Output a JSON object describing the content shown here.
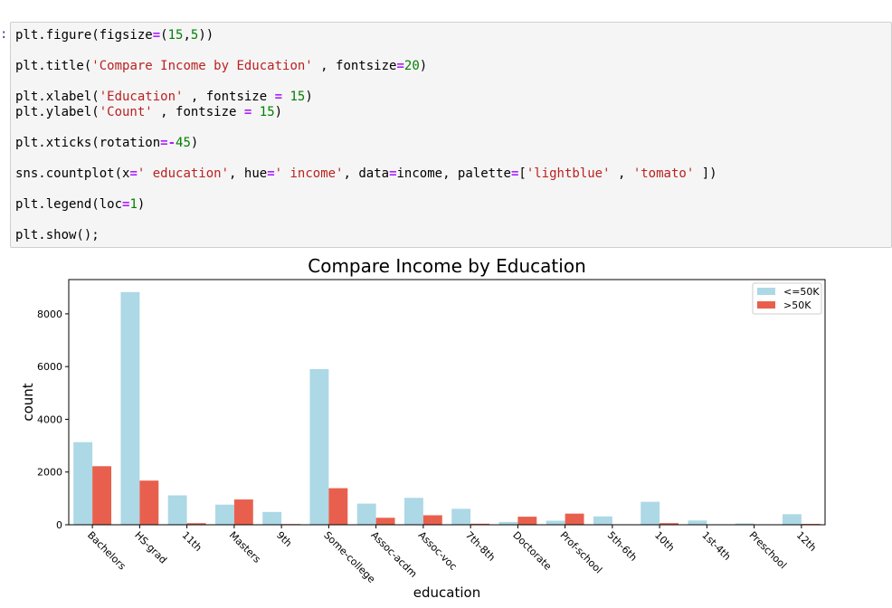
{
  "notebook": {
    "input_prompt": ":",
    "code_lines": [
      [
        [
          "t",
          "plt.figure(figsize"
        ],
        [
          "o",
          "="
        ],
        [
          "t",
          "("
        ],
        [
          "n",
          "15"
        ],
        [
          "t",
          ","
        ],
        [
          "n",
          "5"
        ],
        [
          "t",
          "))"
        ]
      ],
      [],
      [
        [
          "t",
          "plt.title("
        ],
        [
          "s",
          "'Compare Income by Education'"
        ],
        [
          "t",
          " , fontsize"
        ],
        [
          "o",
          "="
        ],
        [
          "n",
          "20"
        ],
        [
          "t",
          ")"
        ]
      ],
      [],
      [
        [
          "t",
          "plt.xlabel("
        ],
        [
          "s",
          "'Education'"
        ],
        [
          "t",
          " , fontsize "
        ],
        [
          "o",
          "="
        ],
        [
          "t",
          " "
        ],
        [
          "n",
          "15"
        ],
        [
          "t",
          ")"
        ]
      ],
      [
        [
          "t",
          "plt.ylabel("
        ],
        [
          "s",
          "'Count'"
        ],
        [
          "t",
          " , fontsize "
        ],
        [
          "o",
          "="
        ],
        [
          "t",
          " "
        ],
        [
          "n",
          "15"
        ],
        [
          "t",
          ")"
        ]
      ],
      [],
      [
        [
          "t",
          "plt.xticks(rotation"
        ],
        [
          "o",
          "=-"
        ],
        [
          "n",
          "45"
        ],
        [
          "t",
          ")"
        ]
      ],
      [],
      [
        [
          "t",
          "sns.countplot(x"
        ],
        [
          "o",
          "="
        ],
        [
          "s",
          "' education'"
        ],
        [
          "t",
          ", hue"
        ],
        [
          "o",
          "="
        ],
        [
          "s",
          "' income'"
        ],
        [
          "t",
          ", data"
        ],
        [
          "o",
          "="
        ],
        [
          "t",
          "income, palette"
        ],
        [
          "o",
          "="
        ],
        [
          "t",
          "["
        ],
        [
          "s",
          "'lightblue'"
        ],
        [
          "t",
          " , "
        ],
        [
          "s",
          "'tomato'"
        ],
        [
          "t",
          " ])"
        ]
      ],
      [],
      [
        [
          "t",
          "plt.legend(loc"
        ],
        [
          "o",
          "="
        ],
        [
          "n",
          "1"
        ],
        [
          "t",
          ")"
        ]
      ],
      [],
      [
        [
          "t",
          "plt.show();"
        ]
      ]
    ]
  },
  "colors": {
    "low_income": "#add8e6",
    "high_income": "#e8604d"
  },
  "chart_data": {
    "type": "bar",
    "title": "Compare Income by Education",
    "xlabel": "education",
    "ylabel": "count",
    "ylim": [
      0,
      9300
    ],
    "yticks": [
      0,
      2000,
      4000,
      6000,
      8000
    ],
    "grid": false,
    "legend_position": "top-right",
    "categories": [
      "Bachelors",
      "HS-grad",
      "11th",
      "Masters",
      "9th",
      "Some-college",
      "Assoc-acdm",
      "Assoc-voc",
      "7th-8th",
      "Doctorate",
      "Prof-school",
      "5th-6th",
      "10th",
      "1st-4th",
      "Preschool",
      "12th"
    ],
    "series": [
      {
        "name": "<=50K",
        "color": "#add8e6",
        "values": [
          3134,
          8826,
          1115,
          764,
          487,
          5904,
          802,
          1021,
          606,
          107,
          153,
          317,
          871,
          162,
          51,
          400
        ]
      },
      {
        "name": ">50K",
        "color": "#e8604d",
        "values": [
          2221,
          1675,
          60,
          959,
          27,
          1387,
          265,
          361,
          40,
          306,
          423,
          16,
          62,
          6,
          0,
          33
        ]
      }
    ]
  }
}
